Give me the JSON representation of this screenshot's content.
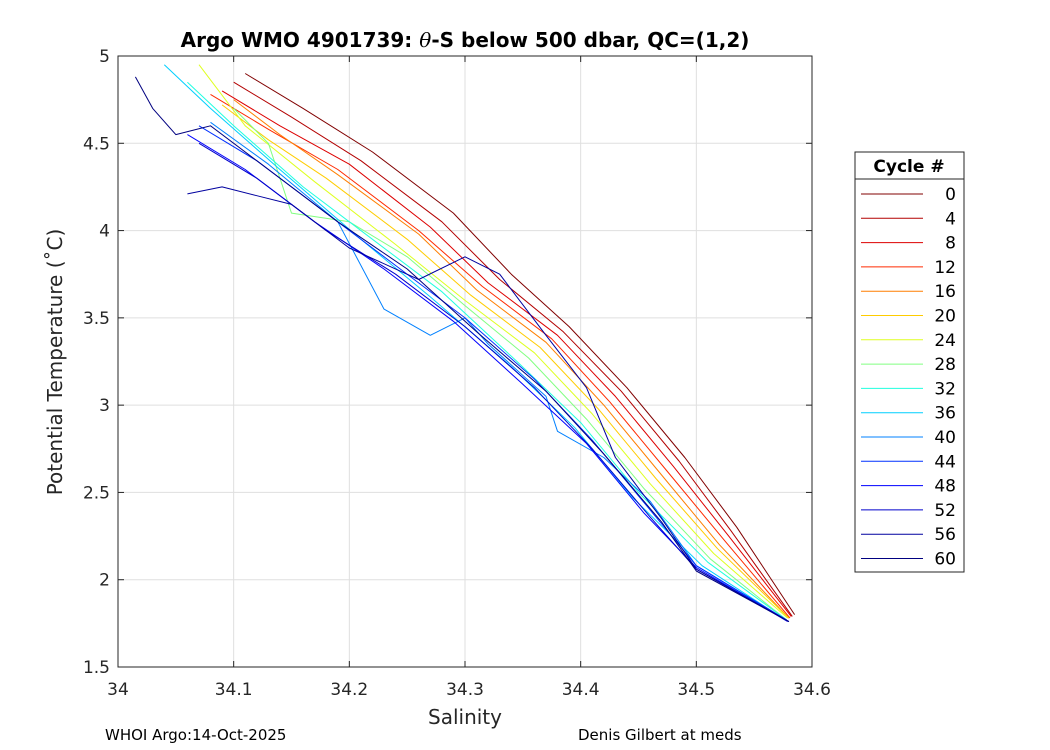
{
  "chart_data": {
    "type": "line",
    "title_parts": {
      "prefix": "Argo WMO 4901739: ",
      "theta": "θ",
      "suffix": "-S below 500 dbar,  QC=(1,2)"
    },
    "xlabel": "Salinity",
    "ylabel": "Potential Temperature (˚C)",
    "xlim": [
      34.0,
      34.6
    ],
    "ylim": [
      1.5,
      5.0
    ],
    "x_ticks": [
      "34",
      "34.1",
      "34.2",
      "34.3",
      "34.4",
      "34.5",
      "34.6"
    ],
    "x_tick_values": [
      34.0,
      34.1,
      34.2,
      34.3,
      34.4,
      34.5,
      34.6
    ],
    "y_ticks": [
      "1.5",
      "2",
      "2.5",
      "3",
      "3.5",
      "4",
      "4.5",
      "5"
    ],
    "y_tick_values": [
      1.5,
      2.0,
      2.5,
      3.0,
      3.5,
      4.0,
      4.5,
      5.0
    ],
    "grid": true,
    "colormap": "jet",
    "legend_title": "Cycle #",
    "legend_position": "east-outside",
    "legend_entries": [
      {
        "label": "0",
        "color": "#800000"
      },
      {
        "label": "4",
        "color": "#b30000"
      },
      {
        "label": "8",
        "color": "#dd0000"
      },
      {
        "label": "12",
        "color": "#ff2a00"
      },
      {
        "label": "16",
        "color": "#ff7f00"
      },
      {
        "label": "20",
        "color": "#ffcc00"
      },
      {
        "label": "24",
        "color": "#dfff20"
      },
      {
        "label": "28",
        "color": "#80ff80"
      },
      {
        "label": "32",
        "color": "#20ffdf"
      },
      {
        "label": "36",
        "color": "#00cfff"
      },
      {
        "label": "40",
        "color": "#0080ff"
      },
      {
        "label": "44",
        "color": "#0030ff"
      },
      {
        "label": "48",
        "color": "#0000ff"
      },
      {
        "label": "52",
        "color": "#0000cc"
      },
      {
        "label": "56",
        "color": "#00009f"
      },
      {
        "label": "60",
        "color": "#000080"
      }
    ],
    "series": [
      {
        "cycle": "0",
        "points": [
          [
            34.11,
            4.9
          ],
          [
            34.16,
            4.7
          ],
          [
            34.22,
            4.45
          ],
          [
            34.29,
            4.1
          ],
          [
            34.34,
            3.75
          ],
          [
            34.39,
            3.45
          ],
          [
            34.44,
            3.1
          ],
          [
            34.49,
            2.7
          ],
          [
            34.535,
            2.3
          ],
          [
            34.585,
            1.8
          ]
        ]
      },
      {
        "cycle": "4",
        "points": [
          [
            34.1,
            4.85
          ],
          [
            34.15,
            4.65
          ],
          [
            34.21,
            4.4
          ],
          [
            34.28,
            4.05
          ],
          [
            34.33,
            3.72
          ],
          [
            34.385,
            3.42
          ],
          [
            34.435,
            3.08
          ],
          [
            34.485,
            2.68
          ],
          [
            34.53,
            2.28
          ],
          [
            34.583,
            1.79
          ]
        ]
      },
      {
        "cycle": "8",
        "points": [
          [
            34.09,
            4.8
          ],
          [
            34.14,
            4.6
          ],
          [
            34.2,
            4.38
          ],
          [
            34.27,
            4.02
          ],
          [
            34.32,
            3.7
          ],
          [
            34.38,
            3.4
          ],
          [
            34.43,
            3.05
          ],
          [
            34.48,
            2.65
          ],
          [
            34.528,
            2.25
          ],
          [
            34.582,
            1.79
          ]
        ]
      },
      {
        "cycle": "12",
        "points": [
          [
            34.08,
            4.78
          ],
          [
            34.13,
            4.58
          ],
          [
            34.19,
            4.35
          ],
          [
            34.26,
            4.0
          ],
          [
            34.315,
            3.68
          ],
          [
            34.375,
            3.38
          ],
          [
            34.425,
            3.02
          ],
          [
            34.475,
            2.62
          ],
          [
            34.525,
            2.22
          ],
          [
            34.581,
            1.78
          ]
        ]
      },
      {
        "cycle": "16",
        "points": [
          [
            34.1,
            4.75
          ],
          [
            34.14,
            4.55
          ],
          [
            34.19,
            4.32
          ],
          [
            34.26,
            3.98
          ],
          [
            34.31,
            3.66
          ],
          [
            34.37,
            3.36
          ],
          [
            34.42,
            3.0
          ],
          [
            34.47,
            2.6
          ],
          [
            34.52,
            2.2
          ],
          [
            34.58,
            1.78
          ]
        ]
      },
      {
        "cycle": "20",
        "points": [
          [
            34.09,
            4.72
          ],
          [
            34.13,
            4.52
          ],
          [
            34.18,
            4.3
          ],
          [
            34.25,
            3.95
          ],
          [
            34.305,
            3.63
          ],
          [
            34.365,
            3.33
          ],
          [
            34.415,
            2.98
          ],
          [
            34.465,
            2.58
          ],
          [
            34.518,
            2.18
          ],
          [
            34.58,
            1.78
          ]
        ]
      },
      {
        "cycle": "24",
        "points": [
          [
            34.07,
            4.95
          ],
          [
            34.11,
            4.6
          ],
          [
            34.17,
            4.28
          ],
          [
            34.24,
            3.92
          ],
          [
            34.3,
            3.6
          ],
          [
            34.36,
            3.3
          ],
          [
            34.41,
            2.95
          ],
          [
            34.46,
            2.55
          ],
          [
            34.515,
            2.15
          ],
          [
            34.579,
            1.78
          ]
        ]
      },
      {
        "cycle": "28",
        "points": [
          [
            34.1,
            4.7
          ],
          [
            34.13,
            4.5
          ],
          [
            34.15,
            4.1
          ],
          [
            34.2,
            4.05
          ],
          [
            34.25,
            3.85
          ],
          [
            34.3,
            3.57
          ],
          [
            34.355,
            3.27
          ],
          [
            34.405,
            2.92
          ],
          [
            34.455,
            2.52
          ],
          [
            34.512,
            2.12
          ],
          [
            34.578,
            1.77
          ]
        ]
      },
      {
        "cycle": "32",
        "points": [
          [
            34.06,
            4.85
          ],
          [
            34.1,
            4.6
          ],
          [
            34.16,
            4.25
          ],
          [
            34.22,
            3.95
          ],
          [
            34.28,
            3.65
          ],
          [
            34.345,
            3.25
          ],
          [
            34.4,
            2.9
          ],
          [
            34.45,
            2.5
          ],
          [
            34.51,
            2.1
          ],
          [
            34.578,
            1.77
          ]
        ]
      },
      {
        "cycle": "36",
        "points": [
          [
            34.04,
            4.95
          ],
          [
            34.08,
            4.7
          ],
          [
            34.14,
            4.35
          ],
          [
            34.21,
            3.95
          ],
          [
            34.27,
            3.62
          ],
          [
            34.34,
            3.22
          ],
          [
            34.395,
            2.87
          ],
          [
            34.445,
            2.47
          ],
          [
            34.505,
            2.08
          ],
          [
            34.577,
            1.77
          ]
        ]
      },
      {
        "cycle": "40",
        "points": [
          [
            34.08,
            4.62
          ],
          [
            34.13,
            4.38
          ],
          [
            34.19,
            4.05
          ],
          [
            34.23,
            3.55
          ],
          [
            34.27,
            3.4
          ],
          [
            34.3,
            3.5
          ],
          [
            34.32,
            3.35
          ],
          [
            34.37,
            3.05
          ],
          [
            34.38,
            2.85
          ],
          [
            34.42,
            2.7
          ],
          [
            34.46,
            2.45
          ],
          [
            34.5,
            2.08
          ],
          [
            34.577,
            1.77
          ]
        ]
      },
      {
        "cycle": "44",
        "points": [
          [
            34.07,
            4.6
          ],
          [
            34.12,
            4.4
          ],
          [
            34.18,
            4.1
          ],
          [
            34.24,
            3.8
          ],
          [
            34.3,
            3.5
          ],
          [
            34.36,
            3.15
          ],
          [
            34.41,
            2.8
          ],
          [
            34.46,
            2.4
          ],
          [
            34.5,
            2.08
          ],
          [
            34.578,
            1.77
          ]
        ]
      },
      {
        "cycle": "48",
        "points": [
          [
            34.06,
            4.55
          ],
          [
            34.11,
            4.35
          ],
          [
            34.17,
            4.05
          ],
          [
            34.23,
            3.78
          ],
          [
            34.29,
            3.48
          ],
          [
            34.35,
            3.12
          ],
          [
            34.405,
            2.78
          ],
          [
            34.455,
            2.38
          ],
          [
            34.5,
            2.07
          ],
          [
            34.579,
            1.76
          ]
        ]
      },
      {
        "cycle": "52",
        "points": [
          [
            34.07,
            4.5
          ],
          [
            34.12,
            4.3
          ],
          [
            34.18,
            4.0
          ],
          [
            34.24,
            3.75
          ],
          [
            34.3,
            3.45
          ],
          [
            34.36,
            3.1
          ],
          [
            34.41,
            2.75
          ],
          [
            34.46,
            2.36
          ],
          [
            34.5,
            2.06
          ],
          [
            34.58,
            1.76
          ]
        ]
      },
      {
        "cycle": "56",
        "points": [
          [
            34.06,
            4.21
          ],
          [
            34.09,
            4.25
          ],
          [
            34.12,
            4.2
          ],
          [
            34.15,
            4.15
          ],
          [
            34.2,
            3.9
          ],
          [
            34.26,
            3.72
          ],
          [
            34.3,
            3.85
          ],
          [
            34.33,
            3.75
          ],
          [
            34.37,
            3.4
          ],
          [
            34.405,
            3.1
          ],
          [
            34.43,
            2.7
          ],
          [
            34.47,
            2.35
          ],
          [
            34.5,
            2.06
          ],
          [
            34.58,
            1.76
          ]
        ]
      },
      {
        "cycle": "60",
        "points": [
          [
            34.015,
            4.88
          ],
          [
            34.03,
            4.7
          ],
          [
            34.05,
            4.55
          ],
          [
            34.08,
            4.6
          ],
          [
            34.13,
            4.35
          ],
          [
            34.19,
            4.05
          ],
          [
            34.25,
            3.78
          ],
          [
            34.31,
            3.42
          ],
          [
            34.37,
            3.08
          ],
          [
            34.42,
            2.72
          ],
          [
            34.47,
            2.33
          ],
          [
            34.5,
            2.05
          ],
          [
            34.58,
            1.76
          ]
        ]
      }
    ]
  },
  "footer": {
    "left": "WHOI Argo:14-Oct-2025",
    "right": "Denis Gilbert at meds"
  }
}
